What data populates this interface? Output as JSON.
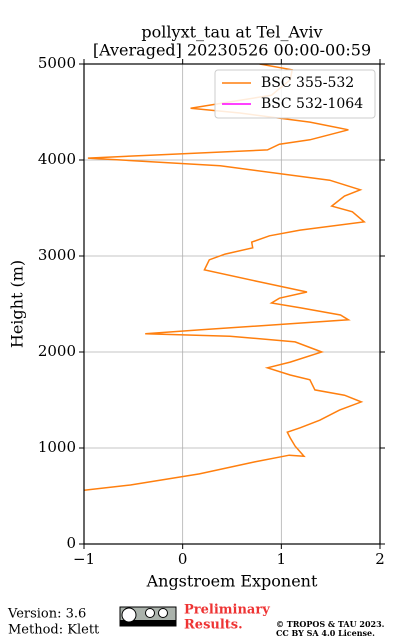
{
  "chart_data": {
    "type": "line",
    "title": "pollyxt_tau at Tel_Aviv",
    "subtitle": "[Averaged] 20230526 00:00-00:59",
    "x_label": "Angstroem Exponent",
    "y_label": "Height (m)",
    "xlim": [
      -1,
      2
    ],
    "ylim": [
      0,
      5000
    ],
    "xticks": [
      {
        "value": -1,
        "label": "−1"
      },
      0,
      1,
      2
    ],
    "yticks": [
      0,
      1000,
      2000,
      3000,
      4000,
      5000
    ],
    "grid": true,
    "legend_position": "upper-right",
    "y": [
      560,
      615,
      730,
      855,
      925,
      915,
      1020,
      1105,
      1165,
      1210,
      1290,
      1395,
      1480,
      1550,
      1605,
      1710,
      1760,
      1835,
      1895,
      2000,
      2105,
      2165,
      2190,
      2230,
      2335,
      2385,
      2460,
      2510,
      2560,
      2625,
      2730,
      2855,
      2960,
      3020,
      3085,
      3145,
      3210,
      3270,
      3355,
      3460,
      3520,
      3625,
      3690,
      3790,
      3940,
      4020,
      4050,
      4105,
      4165,
      4210,
      4315,
      4395,
      4490,
      4540,
      4605,
      4675,
      4835,
      4940,
      5000
    ],
    "series": [
      {
        "name": "BSC 355-532",
        "color": "#ff7f0e",
        "values": [
          -1.0,
          -0.53,
          0.17,
          0.73,
          1.08,
          1.23,
          1.14,
          1.09,
          1.06,
          1.19,
          1.39,
          1.59,
          1.81,
          1.64,
          1.34,
          1.29,
          1.09,
          0.86,
          1.09,
          1.41,
          1.14,
          0.48,
          -0.38,
          0.17,
          1.68,
          1.6,
          1.19,
          0.9,
          0.98,
          1.26,
          0.78,
          0.22,
          0.27,
          0.43,
          0.71,
          0.7,
          0.88,
          1.19,
          1.84,
          1.72,
          1.51,
          1.64,
          1.8,
          1.49,
          0.38,
          -0.96,
          -0.33,
          0.86,
          0.98,
          1.29,
          1.68,
          1.29,
          0.58,
          0.08,
          0.48,
          0.9,
          1.09,
          1.11,
          0.78
        ]
      },
      {
        "name": "BSC 532-1064",
        "color": "#ff00ff",
        "values": [
          null,
          null,
          null,
          null,
          null,
          null,
          null,
          null,
          null,
          null,
          null,
          null,
          null,
          null,
          null,
          null,
          null,
          null,
          null,
          null,
          null,
          null,
          null,
          null,
          null,
          null,
          null,
          null,
          null,
          null,
          null,
          null,
          null,
          null,
          null,
          null,
          null,
          null,
          null,
          null,
          null,
          null,
          null,
          null,
          null,
          null,
          null,
          null,
          null,
          null,
          null,
          null,
          null,
          null,
          null,
          null,
          null,
          null,
          null
        ]
      }
    ]
  },
  "footer": {
    "version": "Version: 3.6",
    "method": "Method: Klett",
    "preliminary": "Preliminary",
    "results": "Results.",
    "copyright": "© TROPOS & TAU 2023.",
    "license": "CC BY SA 4.0 License."
  }
}
